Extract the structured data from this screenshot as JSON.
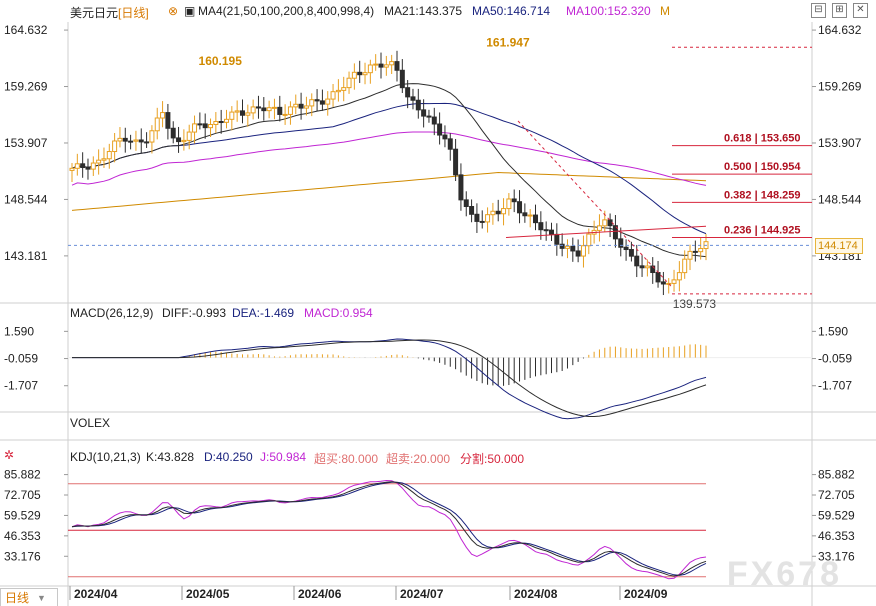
{
  "header": {
    "symbol": "美元日元",
    "period": "[日线]",
    "ma4_label": "MA4(21,50,100,200,8,400,998,4)",
    "ma21_label": "MA21:143.375",
    "ma50_label": "MA50:146.714",
    "ma100_label": "MA100:152.320",
    "ma_suffix": "M"
  },
  "colors": {
    "up": "#e8a020",
    "down": "#2d2d2d",
    "ma21": "#2d2d2d",
    "ma50": "#1a237e",
    "ma100": "#c026d3",
    "ma200": "#d08a00",
    "fib": "#d7263d",
    "macd_diff": "#1a237e",
    "macd_dea": "#2d2d2d",
    "kdj_k": "#2d2d2d",
    "kdj_d": "#1a237e",
    "kdj_j": "#c026d3"
  },
  "macd_panel": {
    "title": "MACD(26,12,9)",
    "diff": "DIFF:-0.993",
    "dea": "DEA:-1.469",
    "macd": "MACD:0.954"
  },
  "volex_panel": {
    "title": "VOLEX"
  },
  "kdj_panel": {
    "title": "KDJ(10,21,3)",
    "k": "K:43.828",
    "d": "D:40.250",
    "j": "J:50.984",
    "overbought": "超买:80.000",
    "oversold": "超卖:20.000",
    "divider": "分割:50.000"
  },
  "bottom_tab": "日线",
  "watermark": "FX678",
  "last_price": "144.174",
  "chart_data": {
    "type": "candlestick",
    "price_axis": {
      "ticks": [
        "164.632",
        "159.269",
        "153.907",
        "148.544",
        "143.181"
      ],
      "range": [
        138.8,
        165.4
      ]
    },
    "macd_axis": {
      "ticks": [
        "1.590",
        "-0.059",
        "-1.707"
      ],
      "range": [
        -3.3,
        2.4
      ]
    },
    "kdj_axis": {
      "ticks": [
        "85.882",
        "72.705",
        "59.529",
        "46.353",
        "33.176"
      ],
      "range": [
        14,
        94
      ]
    },
    "x_labels": [
      "2024/04",
      "2024/05",
      "2024/06",
      "2024/07",
      "2024/08",
      "2024/09"
    ],
    "annotations": [
      {
        "text": "160.195",
        "value": 160.195,
        "kind": "high"
      },
      {
        "text": "161.947",
        "value": 161.947,
        "kind": "high"
      },
      {
        "text": "139.573",
        "value": 139.573,
        "kind": "low"
      }
    ],
    "fib_levels": [
      {
        "label": "0.618 | 153.650",
        "value": 153.65
      },
      {
        "label": "0.500 | 150.954",
        "value": 150.954
      },
      {
        "label": "0.382 | 148.259",
        "value": 148.259
      },
      {
        "label": "0.236 | 144.925",
        "value": 144.925
      }
    ],
    "ohlc_anchor_closes": [
      151.5,
      151.7,
      151.9,
      153.5,
      154.5,
      153.8,
      154.5,
      157.0,
      153.5,
      155.0,
      155.8,
      155.5,
      156.5,
      156.8,
      157.0,
      157.4,
      156.7,
      157.2,
      157.6,
      157.8,
      158.2,
      159.5,
      160.5,
      161.0,
      161.5,
      161.2,
      158.0,
      157.0,
      155.5,
      154.2,
      149.0,
      146.5,
      146.8,
      147.5,
      148.5,
      147.0,
      146.3,
      145.0,
      144.0,
      143.3,
      145.0,
      146.8,
      145.0,
      143.2,
      142.2,
      141.5,
      140.0,
      142.0,
      143.8,
      144.2
    ],
    "macd_hist_note": "histogram bars negative July-Aug, positive Aug-Sep",
    "kdj_lines": {
      "overbought": 80,
      "oversold": 20,
      "divider": 50
    }
  }
}
